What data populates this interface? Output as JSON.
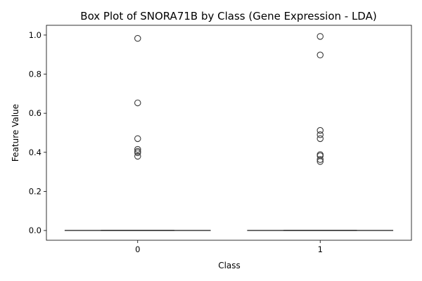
{
  "chart_data": {
    "type": "box",
    "title": "Box Plot of SNORA71B by Class (Gene Expression - LDA)",
    "xlabel": "Class",
    "ylabel": "Feature Value",
    "categories": [
      "0",
      "1"
    ],
    "ylim": [
      -0.05,
      1.05
    ],
    "yticks": [
      "0.0",
      "0.2",
      "0.4",
      "0.6",
      "0.8",
      "1.0"
    ],
    "grid": false,
    "boxes": [
      {
        "class": "0",
        "q1": 0.0,
        "median": 0.0,
        "q3": 0.0,
        "whisker_low": 0.0,
        "whisker_high": 0.0,
        "outliers": [
          0.983,
          0.653,
          0.47,
          0.415,
          0.405,
          0.398,
          0.38
        ]
      },
      {
        "class": "1",
        "q1": 0.0,
        "median": 0.0,
        "q3": 0.0,
        "whisker_low": 0.0,
        "whisker_high": 0.0,
        "outliers": [
          0.993,
          0.898,
          0.512,
          0.49,
          0.47,
          0.388,
          0.382,
          0.363,
          0.353
        ]
      }
    ],
    "box_color": "#4a4a4a",
    "outlier_edge_color": "#3a3a3a"
  }
}
